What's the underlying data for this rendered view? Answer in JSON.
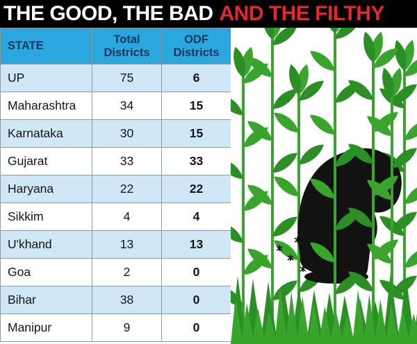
{
  "title": {
    "part1": "THE GOOD, THE BAD",
    "part2": "AND THE FILTHY"
  },
  "colors": {
    "title_bar_bg": "#000000",
    "title_white": "#ffffff",
    "title_red": "#e8262c",
    "table_header_bg": "#2aa7df",
    "table_header_text": "#17365d",
    "row_alt_bg": "#cfe8f7",
    "grid_line": "#8f9aa0",
    "plant_green": "#3aa52c",
    "plant_green_dark": "#2c8f26",
    "figure_black": "#121212"
  },
  "illustration": {
    "alt": "Black silhouette of a person squatting among tall green grass and leafy stems with small flies"
  },
  "chart_data": {
    "type": "table",
    "title": "THE GOOD, THE BAD AND THE FILTHY",
    "columns": [
      "STATE",
      "Total Districts",
      "ODF Districts"
    ],
    "rows": [
      {
        "state": "UP",
        "total": 75,
        "odf": 6
      },
      {
        "state": "Maharashtra",
        "total": 34,
        "odf": 15
      },
      {
        "state": "Karnataka",
        "total": 30,
        "odf": 15
      },
      {
        "state": "Gujarat",
        "total": 33,
        "odf": 33
      },
      {
        "state": "Haryana",
        "total": 22,
        "odf": 22
      },
      {
        "state": "Sikkim",
        "total": 4,
        "odf": 4
      },
      {
        "state": "U'khand",
        "total": 13,
        "odf": 13
      },
      {
        "state": "Goa",
        "total": 2,
        "odf": 0
      },
      {
        "state": "Bihar",
        "total": 38,
        "odf": 0
      },
      {
        "state": "Manipur",
        "total": 9,
        "odf": 0
      }
    ]
  }
}
